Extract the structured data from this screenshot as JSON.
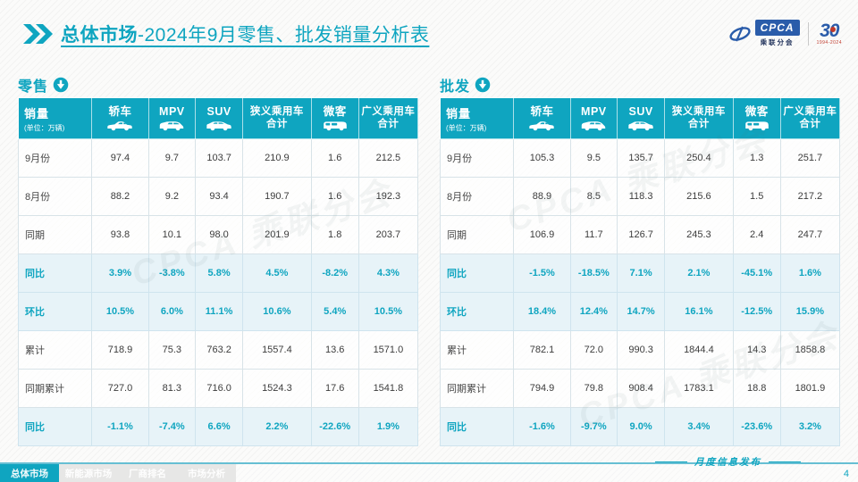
{
  "colors": {
    "accent": "#0FA5C0",
    "percent_row_bg": "#E7F3F8",
    "logo_blue": "#2A5CAA"
  },
  "header": {
    "title_main": "总体市场",
    "title_rest": "-2024年9月零售、批发销量分析表"
  },
  "logos": {
    "cpca_acronym": "CPCA",
    "cpca_name": "乘联分会",
    "anniversary_number": "30",
    "anniversary_years": "1994-2024"
  },
  "watermark_text": "CPCA 乘联分会",
  "tables": [
    {
      "id": "retail",
      "label": "零售",
      "unit_header": {
        "title": "销量",
        "subtitle": "(单位：万辆)"
      },
      "columns": [
        {
          "label": "轿车",
          "icon": "sedan-car-icon"
        },
        {
          "label": "MPV",
          "icon": "mpv-car-icon"
        },
        {
          "label": "SUV",
          "icon": "suv-car-icon"
        },
        {
          "label": "狭义乘用车",
          "label2": "合计"
        },
        {
          "label": "微客",
          "icon": "microvan-icon"
        },
        {
          "label": "广义乘用车",
          "label2": "合计"
        }
      ],
      "rows": [
        {
          "label": "9月份",
          "type": "normal",
          "values": [
            "97.4",
            "9.7",
            "103.7",
            "210.9",
            "1.6",
            "212.5"
          ]
        },
        {
          "label": "8月份",
          "type": "normal",
          "values": [
            "88.2",
            "9.2",
            "93.4",
            "190.7",
            "1.6",
            "192.3"
          ]
        },
        {
          "label": "同期",
          "type": "normal",
          "values": [
            "93.8",
            "10.1",
            "98.0",
            "201.9",
            "1.8",
            "203.7"
          ]
        },
        {
          "label": "同比",
          "type": "percent",
          "values": [
            "3.9%",
            "-3.8%",
            "5.8%",
            "4.5%",
            "-8.2%",
            "4.3%"
          ]
        },
        {
          "label": "环比",
          "type": "percent",
          "values": [
            "10.5%",
            "6.0%",
            "11.1%",
            "10.6%",
            "5.4%",
            "10.5%"
          ]
        },
        {
          "label": "累计",
          "type": "normal",
          "values": [
            "718.9",
            "75.3",
            "763.2",
            "1557.4",
            "13.6",
            "1571.0"
          ]
        },
        {
          "label": "同期累计",
          "type": "normal",
          "values": [
            "727.0",
            "81.3",
            "716.0",
            "1524.3",
            "17.6",
            "1541.8"
          ]
        },
        {
          "label": "同比",
          "type": "percent",
          "values": [
            "-1.1%",
            "-7.4%",
            "6.6%",
            "2.2%",
            "-22.6%",
            "1.9%"
          ]
        }
      ]
    },
    {
      "id": "wholesale",
      "label": "批发",
      "unit_header": {
        "title": "销量",
        "subtitle": "(单位：万辆)"
      },
      "columns": [
        {
          "label": "轿车",
          "icon": "sedan-car-icon"
        },
        {
          "label": "MPV",
          "icon": "mpv-car-icon"
        },
        {
          "label": "SUV",
          "icon": "suv-car-icon"
        },
        {
          "label": "狭义乘用车",
          "label2": "合计"
        },
        {
          "label": "微客",
          "icon": "microvan-icon"
        },
        {
          "label": "广义乘用车",
          "label2": "合计"
        }
      ],
      "rows": [
        {
          "label": "9月份",
          "type": "normal",
          "values": [
            "105.3",
            "9.5",
            "135.7",
            "250.4",
            "1.3",
            "251.7"
          ]
        },
        {
          "label": "8月份",
          "type": "normal",
          "values": [
            "88.9",
            "8.5",
            "118.3",
            "215.6",
            "1.5",
            "217.2"
          ]
        },
        {
          "label": "同期",
          "type": "normal",
          "values": [
            "106.9",
            "11.7",
            "126.7",
            "245.3",
            "2.4",
            "247.7"
          ]
        },
        {
          "label": "同比",
          "type": "percent",
          "values": [
            "-1.5%",
            "-18.5%",
            "7.1%",
            "2.1%",
            "-45.1%",
            "1.6%"
          ]
        },
        {
          "label": "环比",
          "type": "percent",
          "values": [
            "18.4%",
            "12.4%",
            "14.7%",
            "16.1%",
            "-12.5%",
            "15.9%"
          ]
        },
        {
          "label": "累计",
          "type": "normal",
          "values": [
            "782.1",
            "72.0",
            "990.3",
            "1844.4",
            "14.3",
            "1858.8"
          ]
        },
        {
          "label": "同期累计",
          "type": "normal",
          "values": [
            "794.9",
            "79.8",
            "908.4",
            "1783.1",
            "18.8",
            "1801.9"
          ]
        },
        {
          "label": "同比",
          "type": "percent",
          "values": [
            "-1.6%",
            "-9.7%",
            "9.0%",
            "3.4%",
            "-23.6%",
            "3.2%"
          ]
        }
      ]
    }
  ],
  "footer": {
    "tabs": [
      {
        "label": "总体市场",
        "active": true
      },
      {
        "label": "新能源市场",
        "active": false
      },
      {
        "label": "厂商排名",
        "active": false
      },
      {
        "label": "市场分析",
        "active": false
      }
    ],
    "caption": "月度信息发布",
    "page_number": "4"
  }
}
